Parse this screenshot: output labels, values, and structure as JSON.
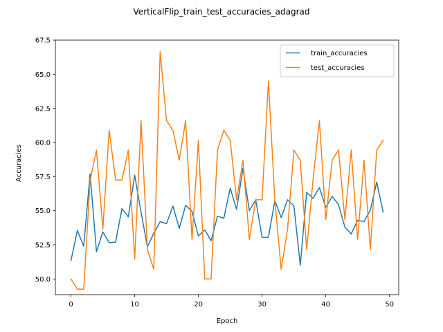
{
  "chart_data": {
    "type": "line",
    "title": "VerticalFlip_train_test_accuracies_adagrad",
    "xlabel": "Epoch",
    "ylabel": "Accuracies",
    "xlim": [
      -2.45,
      51.45
    ],
    "ylim": [
      48.85,
      67.5
    ],
    "xticks": [
      0,
      10,
      20,
      30,
      40,
      50
    ],
    "yticks": [
      50.0,
      52.5,
      55.0,
      57.5,
      60.0,
      62.5,
      65.0,
      67.5
    ],
    "xtick_labels": [
      "0",
      "10",
      "20",
      "30",
      "40",
      "50"
    ],
    "ytick_labels": [
      "50.0",
      "52.5",
      "55.0",
      "57.5",
      "60.0",
      "62.5",
      "65.0",
      "67.5"
    ],
    "grid": false,
    "legend_position": "upper right",
    "x": [
      0,
      1,
      2,
      3,
      4,
      5,
      6,
      7,
      8,
      9,
      10,
      11,
      12,
      13,
      14,
      15,
      16,
      17,
      18,
      19,
      20,
      21,
      22,
      23,
      24,
      25,
      26,
      27,
      28,
      29,
      30,
      31,
      32,
      33,
      34,
      35,
      36,
      37,
      38,
      39,
      40,
      41,
      42,
      43,
      44,
      45,
      46,
      47,
      48,
      49
    ],
    "series": [
      {
        "name": "train_accuracies",
        "color": "#1f77b4",
        "values": [
          51.35,
          53.55,
          52.4,
          57.7,
          52.0,
          53.45,
          52.65,
          52.7,
          55.15,
          54.55,
          57.6,
          54.9,
          52.35,
          53.35,
          54.2,
          54.05,
          55.35,
          53.7,
          55.4,
          54.95,
          53.15,
          53.6,
          52.8,
          54.6,
          54.45,
          56.65,
          55.1,
          58.1,
          55.0,
          55.8,
          53.05,
          53.05,
          55.75,
          54.5,
          55.8,
          55.35,
          51.0,
          56.35,
          55.9,
          56.7,
          55.25,
          56.05,
          55.45,
          53.8,
          53.3,
          54.3,
          54.2,
          55.05,
          57.1,
          54.9
        ]
      },
      {
        "name": "test_accuracies",
        "color": "#ff7f0e",
        "values": [
          50.0,
          49.25,
          49.25,
          57.2,
          59.45,
          53.65,
          60.9,
          57.25,
          57.25,
          59.45,
          51.45,
          61.6,
          52.15,
          50.7,
          66.65,
          61.6,
          60.9,
          58.7,
          61.6,
          52.9,
          60.15,
          50.0,
          50.0,
          59.45,
          60.9,
          60.15,
          55.8,
          58.7,
          52.9,
          55.8,
          55.8,
          64.5,
          55.8,
          50.7,
          53.65,
          59.45,
          58.7,
          52.15,
          57.25,
          61.6,
          54.35,
          58.7,
          59.45,
          54.35,
          59.45,
          52.9,
          58.7,
          52.15,
          59.45,
          60.15
        ]
      }
    ]
  }
}
